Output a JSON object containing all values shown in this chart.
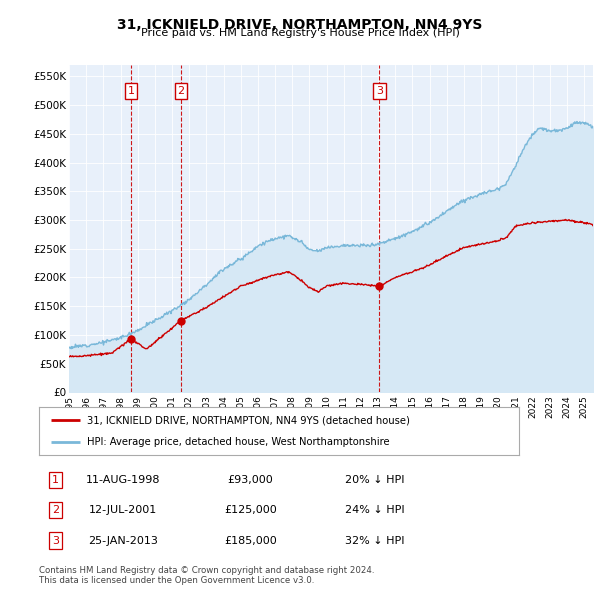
{
  "title": "31, ICKNIELD DRIVE, NORTHAMPTON, NN4 9YS",
  "subtitle": "Price paid vs. HM Land Registry's House Price Index (HPI)",
  "ylabel_ticks": [
    "£0",
    "£50K",
    "£100K",
    "£150K",
    "£200K",
    "£250K",
    "£300K",
    "£350K",
    "£400K",
    "£450K",
    "£500K",
    "£550K"
  ],
  "ytick_values": [
    0,
    50000,
    100000,
    150000,
    200000,
    250000,
    300000,
    350000,
    400000,
    450000,
    500000,
    550000
  ],
  "ylim": [
    0,
    570000
  ],
  "xmin": 1995.0,
  "xmax": 2025.5,
  "sale_dates": [
    1998.61,
    2001.53,
    2013.07
  ],
  "sale_prices": [
    93000,
    125000,
    185000
  ],
  "sale_labels": [
    "1",
    "2",
    "3"
  ],
  "hpi_line_color": "#7ab8d9",
  "hpi_fill_color": "#d6e8f5",
  "sale_line_color": "#cc0000",
  "sale_marker_color": "#cc0000",
  "vline_color": "#cc0000",
  "legend_label_sale": "31, ICKNIELD DRIVE, NORTHAMPTON, NN4 9YS (detached house)",
  "legend_label_hpi": "HPI: Average price, detached house, West Northamptonshire",
  "table_rows": [
    {
      "num": "1",
      "date": "11-AUG-1998",
      "price": "£93,000",
      "hpi": "20% ↓ HPI"
    },
    {
      "num": "2",
      "date": "12-JUL-2001",
      "price": "£125,000",
      "hpi": "24% ↓ HPI"
    },
    {
      "num": "3",
      "date": "25-JAN-2013",
      "price": "£185,000",
      "hpi": "32% ↓ HPI"
    }
  ],
  "footnote": "Contains HM Land Registry data © Crown copyright and database right 2024.\nThis data is licensed under the Open Government Licence v3.0.",
  "bg_color": "#e8f0fa",
  "chart_bg": "#e8f0fa"
}
